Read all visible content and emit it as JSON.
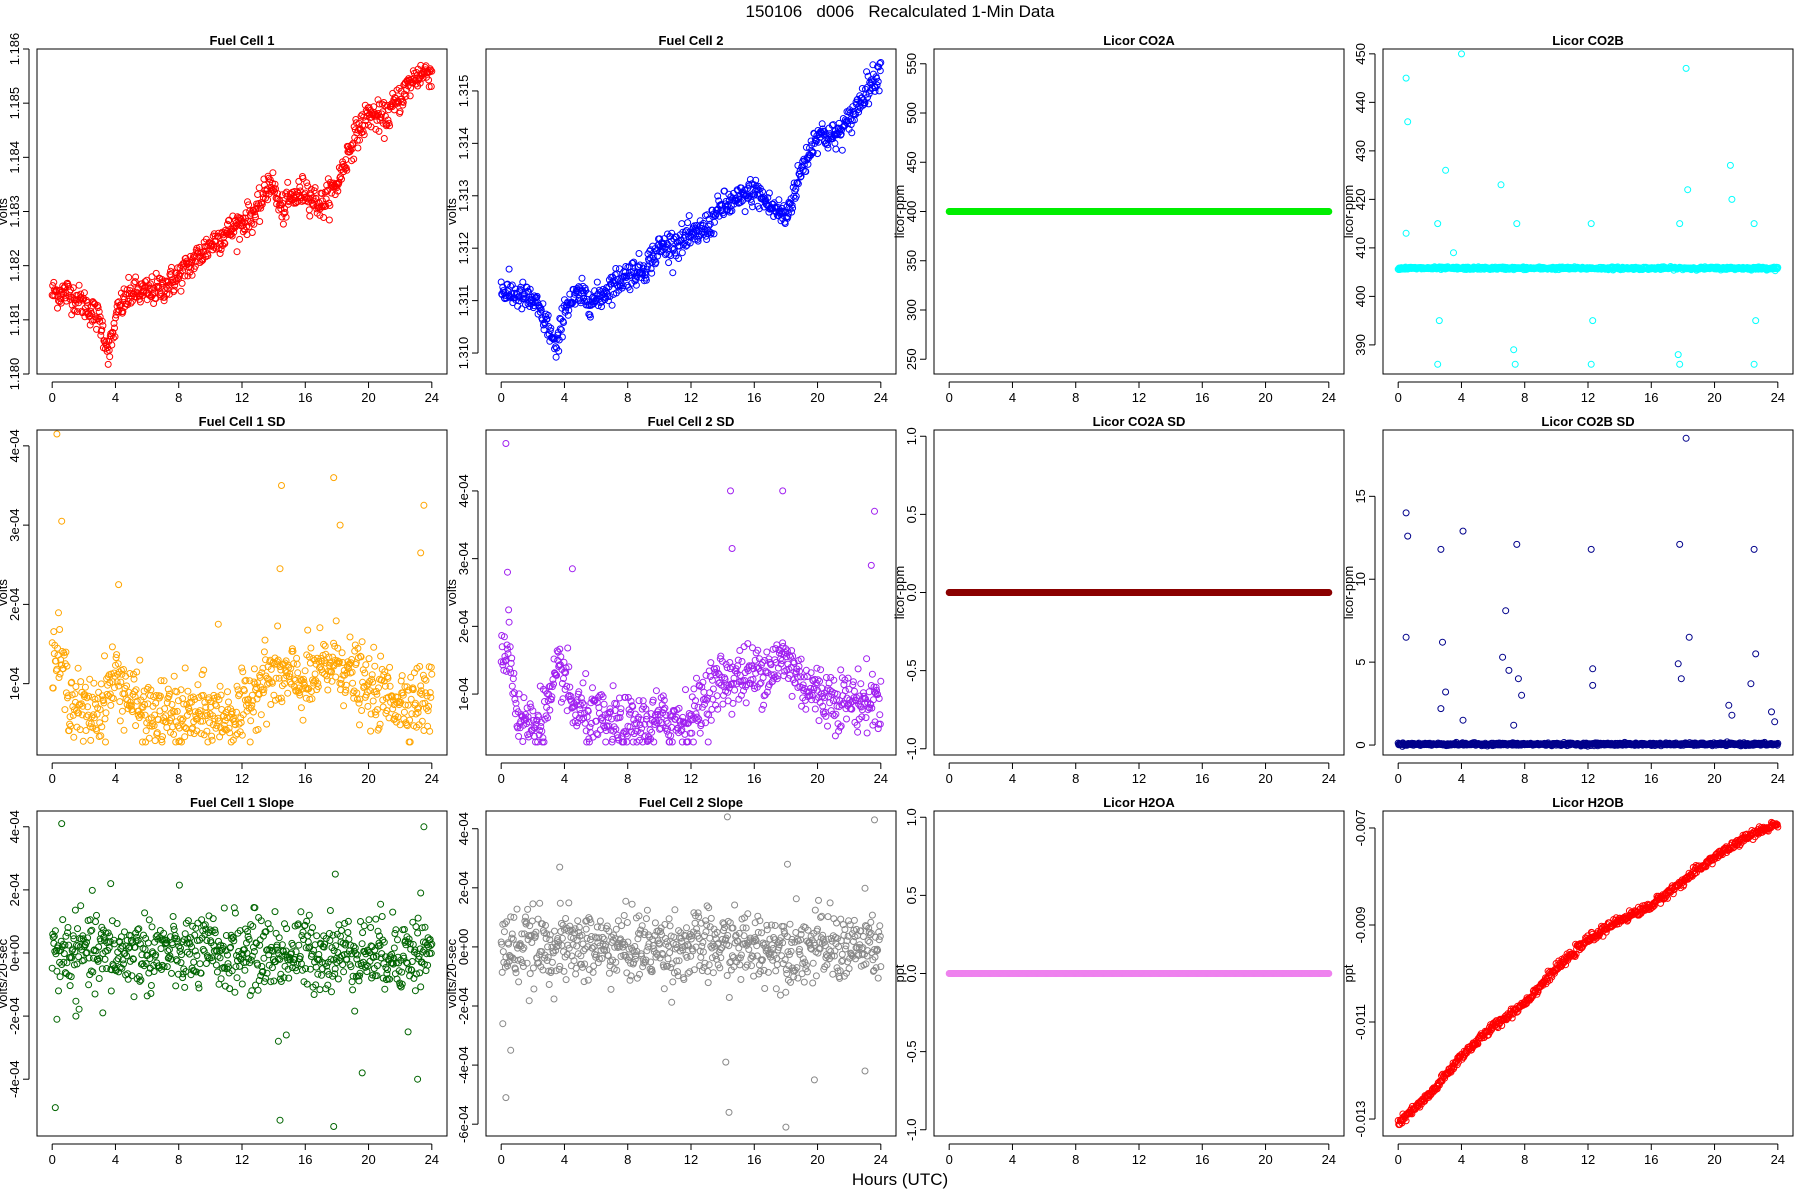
{
  "title": "150106   d006   Recalculated 1-Min Data",
  "xlabel": "Hours (UTC)",
  "chart_data": [
    {
      "type": "scatter",
      "title": "Fuel Cell 1",
      "ylabel": "volts",
      "xlim": [
        0,
        24
      ],
      "ylim": [
        1.18,
        1.186
      ],
      "xticks": [
        0,
        4,
        8,
        12,
        16,
        20,
        24
      ],
      "yticks": [
        1.18,
        1.181,
        1.182,
        1.183,
        1.184,
        1.185,
        1.186
      ],
      "ytick_labels": [
        "1.180",
        "1.181",
        "1.182",
        "1.183",
        "1.184",
        "1.185",
        "1.186"
      ],
      "color": "#ff0000",
      "series_trend": [
        [
          0,
          1.1815
        ],
        [
          1,
          1.1815
        ],
        [
          2,
          1.1813
        ],
        [
          3,
          1.181
        ],
        [
          3.6,
          1.1804
        ],
        [
          4.2,
          1.1812
        ],
        [
          5,
          1.1815
        ],
        [
          6,
          1.1815
        ],
        [
          7,
          1.1816
        ],
        [
          8,
          1.1818
        ],
        [
          9,
          1.1821
        ],
        [
          10,
          1.1824
        ],
        [
          11,
          1.1826
        ],
        [
          12,
          1.1828
        ],
        [
          13,
          1.183
        ],
        [
          13.8,
          1.1836
        ],
        [
          14.5,
          1.183
        ],
        [
          15,
          1.1832
        ],
        [
          16,
          1.1834
        ],
        [
          17,
          1.1831
        ],
        [
          18,
          1.1835
        ],
        [
          19,
          1.1843
        ],
        [
          20,
          1.1848
        ],
        [
          21,
          1.1847
        ],
        [
          22,
          1.1851
        ],
        [
          23,
          1.1855
        ],
        [
          24,
          1.1856
        ]
      ],
      "spread": 0.00025
    },
    {
      "type": "scatter",
      "title": "Fuel Cell 2",
      "ylabel": "volts",
      "xlim": [
        0,
        24
      ],
      "ylim": [
        1.3096,
        1.3158
      ],
      "xticks": [
        0,
        4,
        8,
        12,
        16,
        20,
        24
      ],
      "yticks": [
        1.31,
        1.311,
        1.312,
        1.313,
        1.314,
        1.315
      ],
      "ytick_labels": [
        "1.310",
        "1.311",
        "1.312",
        "1.313",
        "1.314",
        "1.315"
      ],
      "color": "#0000ff",
      "series_trend": [
        [
          0,
          1.3112
        ],
        [
          1,
          1.3111
        ],
        [
          2,
          1.311
        ],
        [
          3,
          1.3105
        ],
        [
          3.5,
          1.31
        ],
        [
          4,
          1.3109
        ],
        [
          5,
          1.3111
        ],
        [
          6,
          1.311
        ],
        [
          7,
          1.3113
        ],
        [
          8,
          1.3115
        ],
        [
          9,
          1.3116
        ],
        [
          10,
          1.312
        ],
        [
          11,
          1.3121
        ],
        [
          12,
          1.3122
        ],
        [
          13,
          1.3124
        ],
        [
          14,
          1.3128
        ],
        [
          15,
          1.3129
        ],
        [
          16,
          1.3131
        ],
        [
          17,
          1.3128
        ],
        [
          18,
          1.3126
        ],
        [
          19,
          1.3135
        ],
        [
          20,
          1.3142
        ],
        [
          21,
          1.3141
        ],
        [
          22,
          1.3144
        ],
        [
          23,
          1.315
        ],
        [
          24,
          1.3154
        ]
      ],
      "spread": 0.00025
    },
    {
      "type": "scatter",
      "title": "Licor CO2A",
      "ylabel": "licor-ppm",
      "xlim": [
        0,
        24
      ],
      "ylim": [
        235,
        565
      ],
      "xticks": [
        0,
        4,
        8,
        12,
        16,
        20,
        24
      ],
      "yticks": [
        250,
        300,
        350,
        400,
        450,
        500,
        550
      ],
      "ytick_labels": [
        "250",
        "300",
        "350",
        "400",
        "450",
        "500",
        "550"
      ],
      "color": "#00ee00",
      "constant": 400
    },
    {
      "type": "scatter",
      "title": "Licor CO2B",
      "ylabel": "licor-ppm",
      "xlim": [
        0,
        24
      ],
      "ylim": [
        384,
        451
      ],
      "xticks": [
        0,
        4,
        8,
        12,
        16,
        20,
        24
      ],
      "yticks": [
        390,
        400,
        410,
        420,
        430,
        440,
        450
      ],
      "ytick_labels": [
        "390",
        "400",
        "410",
        "420",
        "430",
        "440",
        "450"
      ],
      "color": "#00ffff",
      "baseline": 405.8,
      "outliers": [
        [
          0.5,
          445
        ],
        [
          0.6,
          436
        ],
        [
          0.5,
          413
        ],
        [
          2.5,
          415
        ],
        [
          2.6,
          395
        ],
        [
          2.5,
          386
        ],
        [
          3,
          426
        ],
        [
          3.5,
          409
        ],
        [
          4,
          450
        ],
        [
          6.5,
          423
        ],
        [
          7.5,
          415
        ],
        [
          7.3,
          389
        ],
        [
          7.4,
          386
        ],
        [
          12.2,
          415
        ],
        [
          12.3,
          395
        ],
        [
          12.2,
          386
        ],
        [
          17.8,
          415
        ],
        [
          17.7,
          388
        ],
        [
          17.8,
          386
        ],
        [
          18.2,
          447
        ],
        [
          18.3,
          422
        ],
        [
          21,
          427
        ],
        [
          21.1,
          420
        ],
        [
          22.5,
          415
        ],
        [
          22.6,
          395
        ],
        [
          22.5,
          386
        ]
      ]
    },
    {
      "type": "scatter",
      "title": "Fuel Cell 1 SD",
      "ylabel": "volts",
      "xlim": [
        0,
        24
      ],
      "ylim": [
        1e-05,
        0.00042
      ],
      "xticks": [
        0,
        4,
        8,
        12,
        16,
        20,
        24
      ],
      "yticks": [
        0.0001,
        0.0002,
        0.0003,
        0.0004
      ],
      "ytick_labels": [
        "1e-04",
        "2e-04",
        "3e-04",
        "4e-04"
      ],
      "color": "#ffa500",
      "series_trend": [
        [
          0,
          0.00014
        ],
        [
          0.5,
          0.00013
        ],
        [
          1,
          9e-05
        ],
        [
          2,
          6e-05
        ],
        [
          3,
          7e-05
        ],
        [
          4,
          0.00011
        ],
        [
          5,
          8e-05
        ],
        [
          6,
          6e-05
        ],
        [
          8,
          6e-05
        ],
        [
          10,
          6e-05
        ],
        [
          12,
          6e-05
        ],
        [
          13,
          0.0001
        ],
        [
          14,
          0.00011
        ],
        [
          16,
          0.0001
        ],
        [
          18,
          0.00013
        ],
        [
          19,
          0.00011
        ],
        [
          20,
          9e-05
        ],
        [
          22,
          8e-05
        ],
        [
          24,
          8e-05
        ]
      ],
      "spread": 4e-05,
      "outliers": [
        [
          0.3,
          0.000415
        ],
        [
          0.6,
          0.000305
        ],
        [
          4.2,
          0.000225
        ],
        [
          10.5,
          0.000175
        ],
        [
          14.5,
          0.00035
        ],
        [
          14.4,
          0.000245
        ],
        [
          17.8,
          0.00036
        ],
        [
          18.2,
          0.0003
        ],
        [
          23.5,
          0.000325
        ],
        [
          23.3,
          0.000265
        ]
      ]
    },
    {
      "type": "scatter",
      "title": "Fuel Cell 2 SD",
      "ylabel": "volts",
      "xlim": [
        0,
        24
      ],
      "ylim": [
        1e-05,
        0.00049
      ],
      "xticks": [
        0,
        4,
        8,
        12,
        16,
        20,
        24
      ],
      "yticks": [
        0.0001,
        0.0002,
        0.0003,
        0.0004
      ],
      "ytick_labels": [
        "1e-04",
        "2e-04",
        "3e-04",
        "4e-04"
      ],
      "color": "#a020f0",
      "series_trend": [
        [
          0,
          0.00015
        ],
        [
          0.5,
          0.00018
        ],
        [
          1,
          7e-05
        ],
        [
          2,
          5e-05
        ],
        [
          3,
          8e-05
        ],
        [
          3.8,
          0.00014
        ],
        [
          4.5,
          8e-05
        ],
        [
          6,
          6e-05
        ],
        [
          8,
          5e-05
        ],
        [
          10,
          6e-05
        ],
        [
          12,
          6e-05
        ],
        [
          13,
          0.0001
        ],
        [
          14,
          0.00012
        ],
        [
          16,
          0.00013
        ],
        [
          18,
          0.00015
        ],
        [
          19,
          0.00012
        ],
        [
          20,
          0.0001
        ],
        [
          22,
          9e-05
        ],
        [
          24,
          9e-05
        ]
      ],
      "spread": 4e-05,
      "outliers": [
        [
          0.3,
          0.00047
        ],
        [
          0.4,
          0.00028
        ],
        [
          4.5,
          0.000285
        ],
        [
          14.5,
          0.0004
        ],
        [
          14.6,
          0.000315
        ],
        [
          17.8,
          0.0004
        ],
        [
          23.6,
          0.00037
        ],
        [
          23.4,
          0.00029
        ]
      ]
    },
    {
      "type": "scatter",
      "title": "Licor CO2A SD",
      "ylabel": "licor-ppm",
      "xlim": [
        0,
        24
      ],
      "ylim": [
        -1.04,
        1.04
      ],
      "xticks": [
        0,
        4,
        8,
        12,
        16,
        20,
        24
      ],
      "yticks": [
        -1.0,
        -0.5,
        0.0,
        0.5,
        1.0
      ],
      "ytick_labels": [
        "-1.0",
        "-0.5",
        "0.0",
        "0.5",
        "1.0"
      ],
      "color": "#8b0000",
      "constant": 0
    },
    {
      "type": "scatter",
      "title": "Licor CO2B SD",
      "ylabel": "licor-ppm",
      "xlim": [
        0,
        24
      ],
      "ylim": [
        -0.6,
        19
      ],
      "xticks": [
        0,
        4,
        8,
        12,
        16,
        20,
        24
      ],
      "yticks": [
        0,
        5,
        10,
        15
      ],
      "ytick_labels": [
        "0",
        "5",
        "10",
        "15"
      ],
      "color": "#00008b",
      "baseline": 0.05,
      "outliers": [
        [
          0.5,
          14
        ],
        [
          0.6,
          12.6
        ],
        [
          0.5,
          6.5
        ],
        [
          2.7,
          11.8
        ],
        [
          2.8,
          6.2
        ],
        [
          3,
          3.2
        ],
        [
          2.7,
          2.2
        ],
        [
          4.1,
          12.9
        ],
        [
          4.1,
          1.5
        ],
        [
          6.6,
          5.3
        ],
        [
          6.8,
          8.1
        ],
        [
          7,
          4.5
        ],
        [
          7.5,
          12.1
        ],
        [
          7.6,
          4
        ],
        [
          7.8,
          3
        ],
        [
          7.3,
          1.2
        ],
        [
          12.2,
          11.8
        ],
        [
          12.3,
          3.6
        ],
        [
          12.3,
          4.6
        ],
        [
          17.8,
          12.1
        ],
        [
          17.7,
          4.9
        ],
        [
          17.9,
          4
        ],
        [
          18.2,
          18.5
        ],
        [
          18.4,
          6.5
        ],
        [
          20.9,
          2.4
        ],
        [
          21.1,
          1.8
        ],
        [
          22.5,
          11.8
        ],
        [
          22.6,
          5.5
        ],
        [
          22.3,
          3.7
        ],
        [
          23.6,
          2
        ],
        [
          23.8,
          1.4
        ]
      ]
    },
    {
      "type": "scatter",
      "title": "Fuel Cell 1 Slope",
      "ylabel": "volts/20-sec",
      "xlim": [
        0,
        24
      ],
      "ylim": [
        -0.00058,
        0.00045
      ],
      "xticks": [
        0,
        4,
        8,
        12,
        16,
        20,
        24
      ],
      "yticks": [
        -0.0004,
        -0.0002,
        0,
        0.0002,
        0.0004
      ],
      "ytick_labels": [
        "-4e-04",
        "-2e-04",
        "0e+00",
        "2e-04",
        "4e-04"
      ],
      "color": "#006400",
      "center": 0,
      "spread": 6e-05,
      "outliers": [
        [
          0.6,
          0.00041
        ],
        [
          0.2,
          -0.00049
        ],
        [
          0.3,
          -0.00021
        ],
        [
          1.5,
          -0.0002
        ],
        [
          3.2,
          -0.00019
        ],
        [
          3.7,
          0.00022
        ],
        [
          14.3,
          -0.00028
        ],
        [
          14.4,
          -0.00053
        ],
        [
          14.8,
          -0.00026
        ],
        [
          17.8,
          -0.00055
        ],
        [
          17.9,
          0.00025
        ],
        [
          19.6,
          -0.00038
        ],
        [
          22.5,
          -0.00025
        ],
        [
          23.1,
          -0.0004
        ],
        [
          23.5,
          0.0004
        ],
        [
          23.3,
          0.00019
        ]
      ]
    },
    {
      "type": "scatter",
      "title": "Fuel Cell 2 Slope",
      "ylabel": "volts/20-sec",
      "xlim": [
        0,
        24
      ],
      "ylim": [
        -0.00064,
        0.00046
      ],
      "xticks": [
        0,
        4,
        8,
        12,
        16,
        20,
        24
      ],
      "yticks": [
        -0.0006,
        -0.0004,
        -0.0002,
        0,
        0.0002,
        0.0004
      ],
      "ytick_labels": [
        "-6e-04",
        "-4e-04",
        "-2e-04",
        "0e+00",
        "2e-04",
        "4e-04"
      ],
      "color": "#888888",
      "center": 0,
      "spread": 6e-05,
      "outliers": [
        [
          0.3,
          -0.00051
        ],
        [
          0.6,
          -0.00035
        ],
        [
          0.1,
          -0.00026
        ],
        [
          3.7,
          0.00027
        ],
        [
          14.3,
          0.00044
        ],
        [
          14.4,
          -0.00056
        ],
        [
          14.2,
          -0.00039
        ],
        [
          18,
          -0.00061
        ],
        [
          18.1,
          0.00028
        ],
        [
          19.8,
          -0.00045
        ],
        [
          23.6,
          0.00043
        ],
        [
          23.0,
          -0.00042
        ]
      ]
    },
    {
      "type": "scatter",
      "title": "Licor H2OA",
      "ylabel": "ppt",
      "xlim": [
        0,
        24
      ],
      "ylim": [
        -1.04,
        1.04
      ],
      "xticks": [
        0,
        4,
        8,
        12,
        16,
        20,
        24
      ],
      "yticks": [
        -1.0,
        -0.5,
        0.0,
        0.5,
        1.0
      ],
      "ytick_labels": [
        "-1.0",
        "-0.5",
        "0.0",
        "0.5",
        "1.0"
      ],
      "color": "#ee82ee",
      "constant": 0
    },
    {
      "type": "scatter",
      "title": "Licor H2OB",
      "ylabel": "ppt",
      "xlim": [
        0,
        24
      ],
      "ylim": [
        -0.01335,
        -0.00665
      ],
      "xticks": [
        0,
        4,
        8,
        12,
        16,
        20,
        24
      ],
      "yticks": [
        -0.013,
        -0.011,
        -0.009,
        -0.007
      ],
      "ytick_labels": [
        "-0.013",
        "-0.011",
        "-0.009",
        "-0.007"
      ],
      "color": "#ff0000",
      "series_trend": [
        [
          0,
          -0.0131
        ],
        [
          2,
          -0.0125
        ],
        [
          4,
          -0.0117
        ],
        [
          6,
          -0.0111
        ],
        [
          8,
          -0.0106
        ],
        [
          10,
          -0.0099
        ],
        [
          12,
          -0.0093
        ],
        [
          14,
          -0.0089
        ],
        [
          16,
          -0.0086
        ],
        [
          18,
          -0.0081
        ],
        [
          20,
          -0.0076
        ],
        [
          22,
          -0.0072
        ],
        [
          24,
          -0.0069
        ]
      ],
      "spread": 8e-05
    }
  ]
}
